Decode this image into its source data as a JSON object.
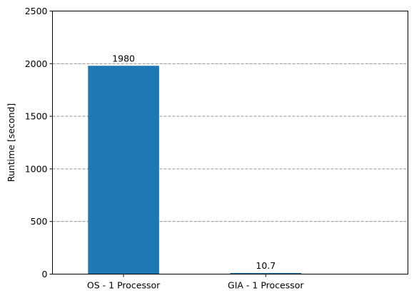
{
  "chart_data": {
    "type": "bar",
    "categories": [
      "OS - 1 Processor",
      "GIA - 1 Processor"
    ],
    "values": [
      1980,
      10.7
    ],
    "data_labels": [
      "1980",
      "10.7"
    ],
    "title": "",
    "xlabel": "",
    "ylabel": "Runtime [second]",
    "ylim": [
      0,
      2500
    ],
    "yticks": [
      0,
      500,
      1000,
      1500,
      2000,
      2500
    ],
    "ytick_labels": [
      "0",
      "500",
      "1000",
      "1500",
      "2000",
      "2500"
    ],
    "grid": "y-axis dashed",
    "legend": "none",
    "colors": {
      "bar": "#1f77b4",
      "grid": "#808080",
      "axis": "#000000"
    }
  }
}
